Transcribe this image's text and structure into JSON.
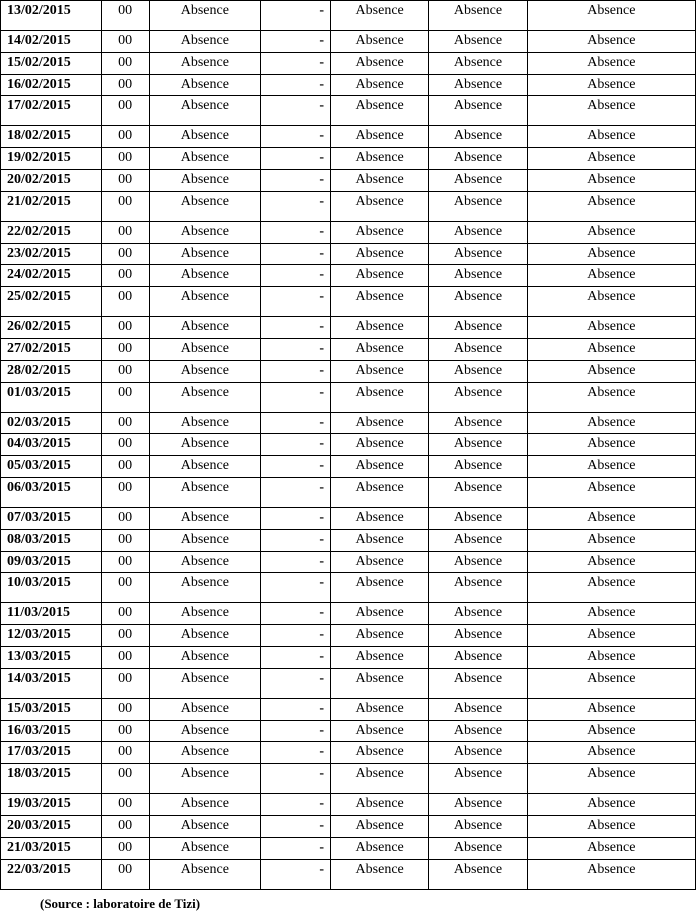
{
  "caption": "(Source : laboratoire de Tizi)",
  "value_groups": [
    "00",
    "Absence",
    "-",
    "Absence",
    "Absence",
    "Absence"
  ],
  "groups": [
    {
      "dates": [
        "13/02/2015"
      ],
      "spacer_after_first": false
    },
    {
      "dates": [
        "14/02/2015",
        "15/02/2015",
        "16/02/2015",
        "17/02/2015"
      ],
      "spacer_after_first": true
    },
    {
      "dates": [
        "18/02/2015",
        "19/02/2015",
        "20/02/2015",
        "21/02/2015"
      ],
      "spacer_after_first": false
    },
    {
      "dates": [
        "22/02/2015",
        "23/02/2015",
        "24/02/2015",
        "25/02/2015"
      ],
      "spacer_after_first": false
    },
    {
      "dates": [
        "26/02/2015",
        "27/02/2015",
        "28/02/2015",
        "01/03/2015"
      ],
      "spacer_after_first": false
    },
    {
      "dates": [
        "02/03/2015",
        "04/03/2015",
        "05/03/2015",
        "06/03/2015"
      ],
      "spacer_after_first": false
    },
    {
      "dates": [
        "07/03/2015",
        "08/03/2015",
        "09/03/2015",
        "10/03/2015"
      ],
      "spacer_after_first": false
    },
    {
      "dates": [
        "11/03/2015",
        "12/03/2015",
        "13/03/2015",
        "14/03/2015"
      ],
      "spacer_after_first": false
    },
    {
      "dates": [
        "15/03/2015",
        "16/03/2015",
        "17/03/2015",
        "18/03/2015"
      ],
      "spacer_after_first": false
    },
    {
      "dates": [
        "19/03/2015",
        "20/03/2015",
        "21/03/2015",
        "22/03/2015"
      ],
      "spacer_after_first": false
    }
  ]
}
